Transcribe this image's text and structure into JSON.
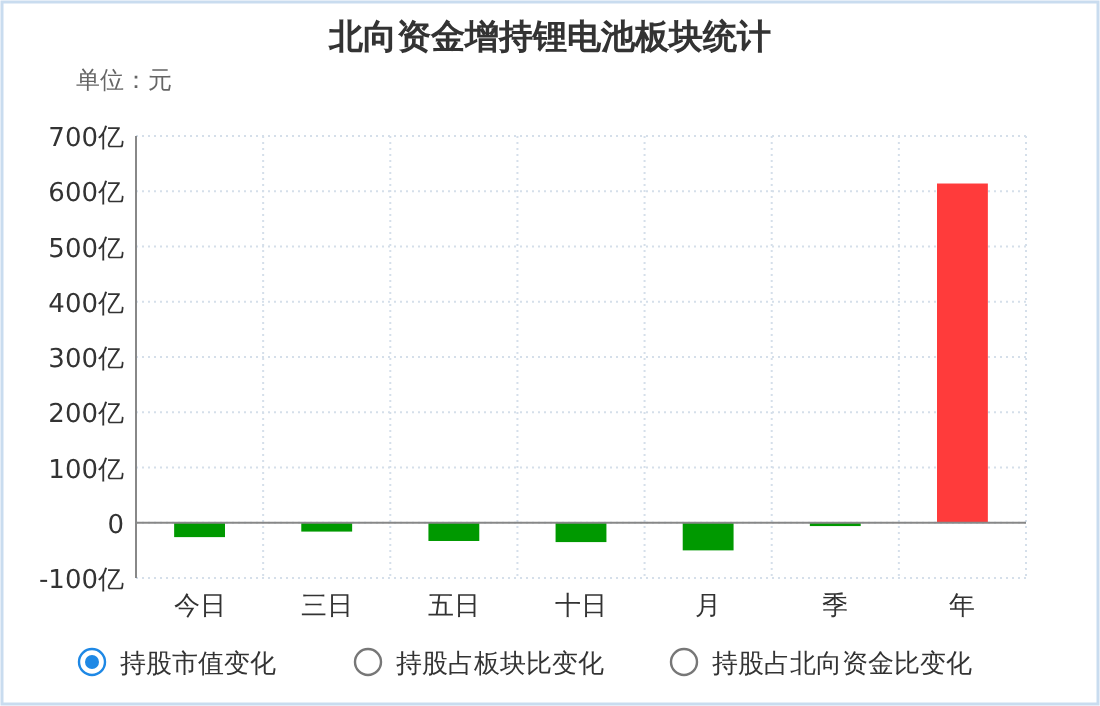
{
  "chart_data": {
    "type": "bar",
    "title": "北向资金增持锂电池板块统计",
    "ylabel": "单位：元",
    "categories": [
      "今日",
      "三日",
      "五日",
      "十日",
      "月",
      "季",
      "年"
    ],
    "values": [
      -26,
      -16,
      -33,
      -35,
      -50,
      -6,
      614
    ],
    "colors": [
      "#009900",
      "#009900",
      "#009900",
      "#009900",
      "#009900",
      "#009900",
      "#ff3b3b"
    ],
    "ylim": [
      -100,
      700
    ],
    "yticks": [
      {
        "value": -100,
        "label": "-100亿"
      },
      0,
      {
        "value": 100,
        "label": "100亿"
      },
      {
        "value": 200,
        "label": "200亿"
      },
      {
        "value": 300,
        "label": "300亿"
      },
      {
        "value": 400,
        "label": "400亿"
      },
      {
        "value": 500,
        "label": "500亿"
      },
      {
        "value": 600,
        "label": "600亿"
      },
      {
        "value": 700,
        "label": "700亿"
      }
    ],
    "grid": true,
    "annotations": [
      "持股市值变化",
      "持股占板块比变化",
      "持股占北向资金比变化"
    ]
  }
}
